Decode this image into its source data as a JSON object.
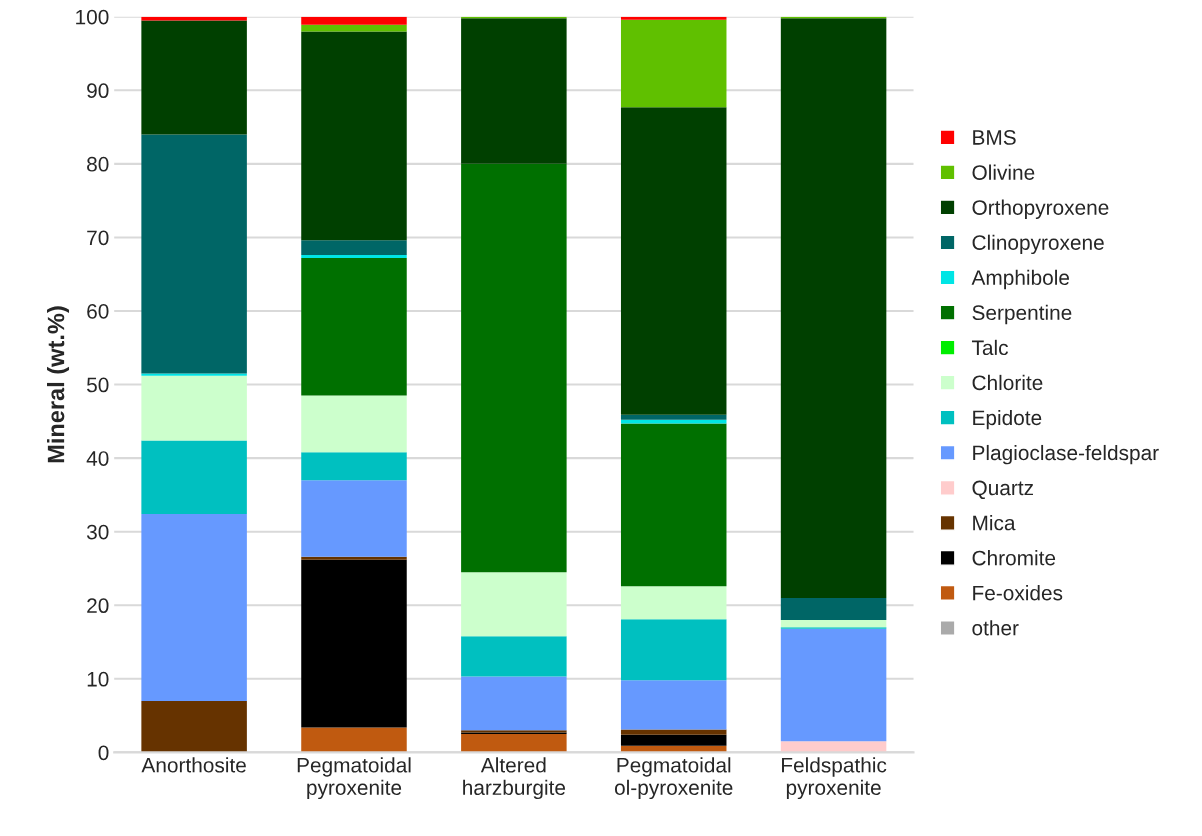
{
  "chart_data": {
    "type": "bar",
    "stacked": true,
    "ylabel": "Mineral (wt.%)",
    "categories": [
      "Anorthosite",
      "Pegmatoidal\npyroxenite",
      "Altered\nharzburgite",
      "Pegmatoidal\nol-pyroxenite",
      "Feldspathic\npyroxenite"
    ],
    "ylim": [
      0,
      100
    ],
    "yticks": [
      0,
      10,
      20,
      30,
      40,
      50,
      60,
      70,
      80,
      90,
      100
    ],
    "grid": "y",
    "legend": "right",
    "series": [
      {
        "name": "other",
        "color": "#aaaaaa",
        "values": [
          null,
          null,
          null,
          null,
          null
        ]
      },
      {
        "name": "Fe-oxides",
        "color": "#c05a10",
        "values": [
          null,
          3.4,
          2.5,
          0.9,
          null
        ]
      },
      {
        "name": "Chromite",
        "color": "#000000",
        "values": [
          null,
          22.8,
          0.2,
          1.5,
          null
        ]
      },
      {
        "name": "Mica",
        "color": "#663300",
        "values": [
          7.0,
          0.4,
          0.3,
          0.7,
          null
        ]
      },
      {
        "name": "Quartz",
        "color": "#ffcccc",
        "values": [
          null,
          null,
          null,
          null,
          1.5
        ]
      },
      {
        "name": "Plagioclase-feldspar",
        "color": "#6699ff",
        "values": [
          25.4,
          10.4,
          7.3,
          6.7,
          15.3
        ]
      },
      {
        "name": "Epidote",
        "color": "#00c0c0",
        "values": [
          10.0,
          3.8,
          5.5,
          8.3,
          0.2
        ]
      },
      {
        "name": "Chlorite",
        "color": "#ccffcc",
        "values": [
          8.8,
          7.7,
          8.7,
          4.5,
          1.0
        ]
      },
      {
        "name": "Talc",
        "color": "#00ee00",
        "values": [
          null,
          null,
          null,
          null,
          null
        ]
      },
      {
        "name": "Serpentine",
        "color": "#007000",
        "values": [
          null,
          18.7,
          55.5,
          22.1,
          null
        ]
      },
      {
        "name": "Amphibole",
        "color": "#00e5e5",
        "values": [
          0.3,
          0.4,
          null,
          0.5,
          null
        ]
      },
      {
        "name": "Clinopyroxene",
        "color": "#006666",
        "values": [
          32.5,
          2.0,
          null,
          0.7,
          3.0
        ]
      },
      {
        "name": "Orthopyroxene",
        "color": "#004000",
        "values": [
          15.5,
          28.4,
          19.8,
          41.8,
          78.8
        ]
      },
      {
        "name": "Olivine",
        "color": "#60c000",
        "values": [
          null,
          0.9,
          0.2,
          11.9,
          0.2
        ]
      },
      {
        "name": "BMS",
        "color": "#ff0000",
        "values": [
          0.5,
          1.1,
          null,
          0.4,
          null
        ]
      }
    ]
  }
}
